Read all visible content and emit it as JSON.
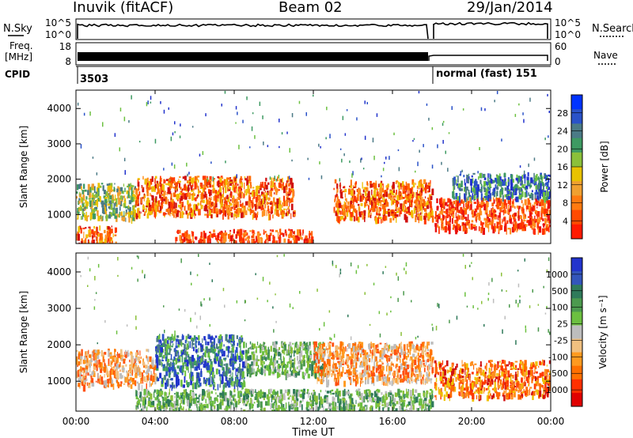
{
  "header": {
    "station": "Inuvik (fitACF)",
    "beam": "Beam 02",
    "date": "29/Jan/2014"
  },
  "panels": {
    "nsky_label": "N.Sky",
    "nsearch_label": "N.Search",
    "nsky_ticks": [
      "10^5",
      "10^0"
    ],
    "nsearch_ticks": [
      "10^5",
      "10^0"
    ],
    "freq_label": [
      "Freq.",
      "[MHz]"
    ],
    "freq_ticks": [
      "18",
      "8"
    ],
    "nave_label": "Nave",
    "nave_ticks": [
      "60",
      "0"
    ],
    "cpid_label": "CPID",
    "cpid_segments": [
      "3503",
      "normal (fast) 151"
    ]
  },
  "chart_data": [
    {
      "type": "heatmap",
      "title": "",
      "quantity": "Power",
      "xlabel": "",
      "ylabel": "Slant Range [km]",
      "x_ticks": [
        "00:00",
        "04:00",
        "08:00",
        "12:00",
        "16:00",
        "20:00",
        "00:00"
      ],
      "y_ticks": [
        "1000",
        "2000",
        "3000",
        "4000"
      ],
      "ylim": [
        180,
        4520
      ],
      "colorbar": {
        "label": "Power [dB]",
        "ticks": [
          "4",
          "8",
          "12",
          "16",
          "20",
          "24",
          "28"
        ],
        "colors": [
          "#0033ff",
          "#2a52c8",
          "#4b7a86",
          "#3e9a62",
          "#8bc03a",
          "#e8c200",
          "#f0a030",
          "#ff7a10",
          "#ff4a00",
          "#ff1a00"
        ]
      },
      "scatter_bands": [
        {
          "t_start": 0.0,
          "t_end": 3.0,
          "r_low": 900,
          "r_high": 1900,
          "dominant": "green-orange"
        },
        {
          "t_start": 0.0,
          "t_end": 2.0,
          "r_low": 200,
          "r_high": 700,
          "dominant": "orange-red"
        },
        {
          "t_start": 3.0,
          "t_end": 11.0,
          "r_low": 1000,
          "r_high": 2100,
          "dominant": "orange-red"
        },
        {
          "t_start": 5.0,
          "t_end": 9.5,
          "r_low": 250,
          "r_high": 600,
          "dominant": "red"
        },
        {
          "t_start": 9.5,
          "t_end": 12.0,
          "r_low": 250,
          "r_high": 600,
          "dominant": "red"
        },
        {
          "t_start": 13.0,
          "t_end": 18.0,
          "r_low": 900,
          "r_high": 2000,
          "dominant": "orange-red"
        },
        {
          "t_start": 18.1,
          "t_end": 24.0,
          "r_low": 600,
          "r_high": 1500,
          "dominant": "red"
        },
        {
          "t_start": 19.0,
          "t_end": 24.0,
          "r_low": 1500,
          "r_high": 2200,
          "dominant": "blue-green"
        }
      ]
    },
    {
      "type": "heatmap",
      "title": "",
      "quantity": "Velocity",
      "xlabel": "Time UT",
      "ylabel": "Slant Range [km]",
      "x_ticks": [
        "00:00",
        "04:00",
        "08:00",
        "12:00",
        "16:00",
        "20:00",
        "00:00"
      ],
      "y_ticks": [
        "1000",
        "2000",
        "3000",
        "4000"
      ],
      "ylim": [
        180,
        4520
      ],
      "colorbar": {
        "label": "Velocity [m s⁻¹]",
        "ticks": [
          "1000",
          "500",
          "100",
          "25",
          "-25",
          "-100",
          "-500",
          "-1000"
        ],
        "colors": [
          "#2233cc",
          "#3355bb",
          "#2f7a5a",
          "#4c9a4e",
          "#6cc040",
          "#bdbdbd",
          "#f0c080",
          "#ff9a20",
          "#ff7000",
          "#ff3000",
          "#e00000"
        ]
      },
      "scatter_bands": [
        {
          "t_start": 0.0,
          "t_end": 4.0,
          "r_low": 900,
          "r_high": 1900,
          "dominant": "orange"
        },
        {
          "t_start": 4.0,
          "t_end": 8.5,
          "r_low": 900,
          "r_high": 2300,
          "dominant": "blue-green"
        },
        {
          "t_start": 8.5,
          "t_end": 12.5,
          "r_low": 1200,
          "r_high": 2100,
          "dominant": "green"
        },
        {
          "t_start": 12.0,
          "t_end": 18.0,
          "r_low": 1000,
          "r_high": 2100,
          "dominant": "orange"
        },
        {
          "t_start": 3.0,
          "t_end": 18.0,
          "r_low": 200,
          "r_high": 800,
          "dominant": "green"
        },
        {
          "t_start": 18.1,
          "t_end": 24.0,
          "r_low": 600,
          "r_high": 1600,
          "dominant": "orange-red"
        }
      ]
    }
  ]
}
